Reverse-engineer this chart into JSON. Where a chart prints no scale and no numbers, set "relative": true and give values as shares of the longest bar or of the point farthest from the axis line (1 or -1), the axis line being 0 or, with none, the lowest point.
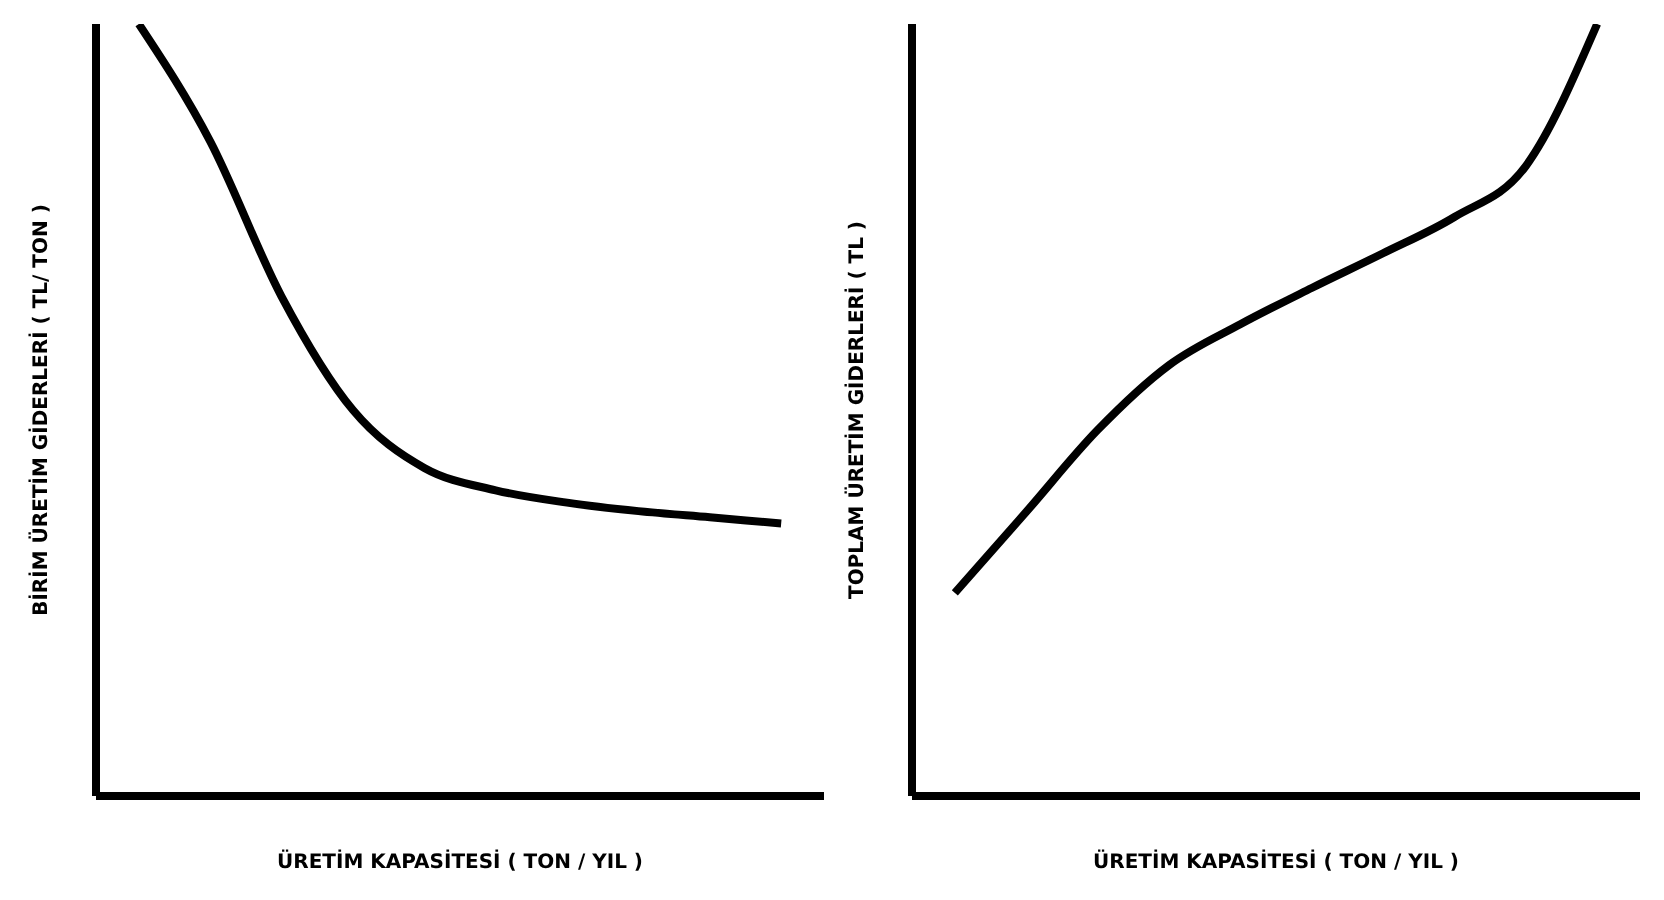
{
  "chart_data": [
    {
      "type": "line",
      "xlabel": "ÜRETİM KAPASİTESİ ( TON / YIL )",
      "ylabel": "BİRİM ÜRETİM GİDERLERİ ( TL/ TON )",
      "relative": true,
      "categories": [
        null,
        null,
        null,
        null,
        null,
        null,
        null,
        null,
        null,
        null
      ],
      "series": [
        {
          "color": "#000000",
          "values": [
            1,
            0.848,
            0.647,
            0.5,
            0.425,
            0.396,
            0.38,
            0.369,
            0.361,
            0.353
          ]
        }
      ],
      "grid": false,
      "legend": false,
      "marker": "none",
      "line_style": "solid"
    },
    {
      "type": "line",
      "xlabel": "ÜRETİM KAPASİTESİ ( TON / YIL )",
      "ylabel": "TOPLAM ÜRETİM GİDERLERİ ( TL )",
      "relative": true,
      "categories": [
        null,
        null,
        null,
        null,
        null,
        null,
        null,
        null,
        null,
        null
      ],
      "series": [
        {
          "color": "#000000",
          "values": [
            0.263,
            0.368,
            0.474,
            0.558,
            0.611,
            0.658,
            0.703,
            0.75,
            0.816,
            1
          ]
        }
      ],
      "grid": false,
      "legend": false,
      "marker": "none",
      "line_style": "solid"
    }
  ]
}
